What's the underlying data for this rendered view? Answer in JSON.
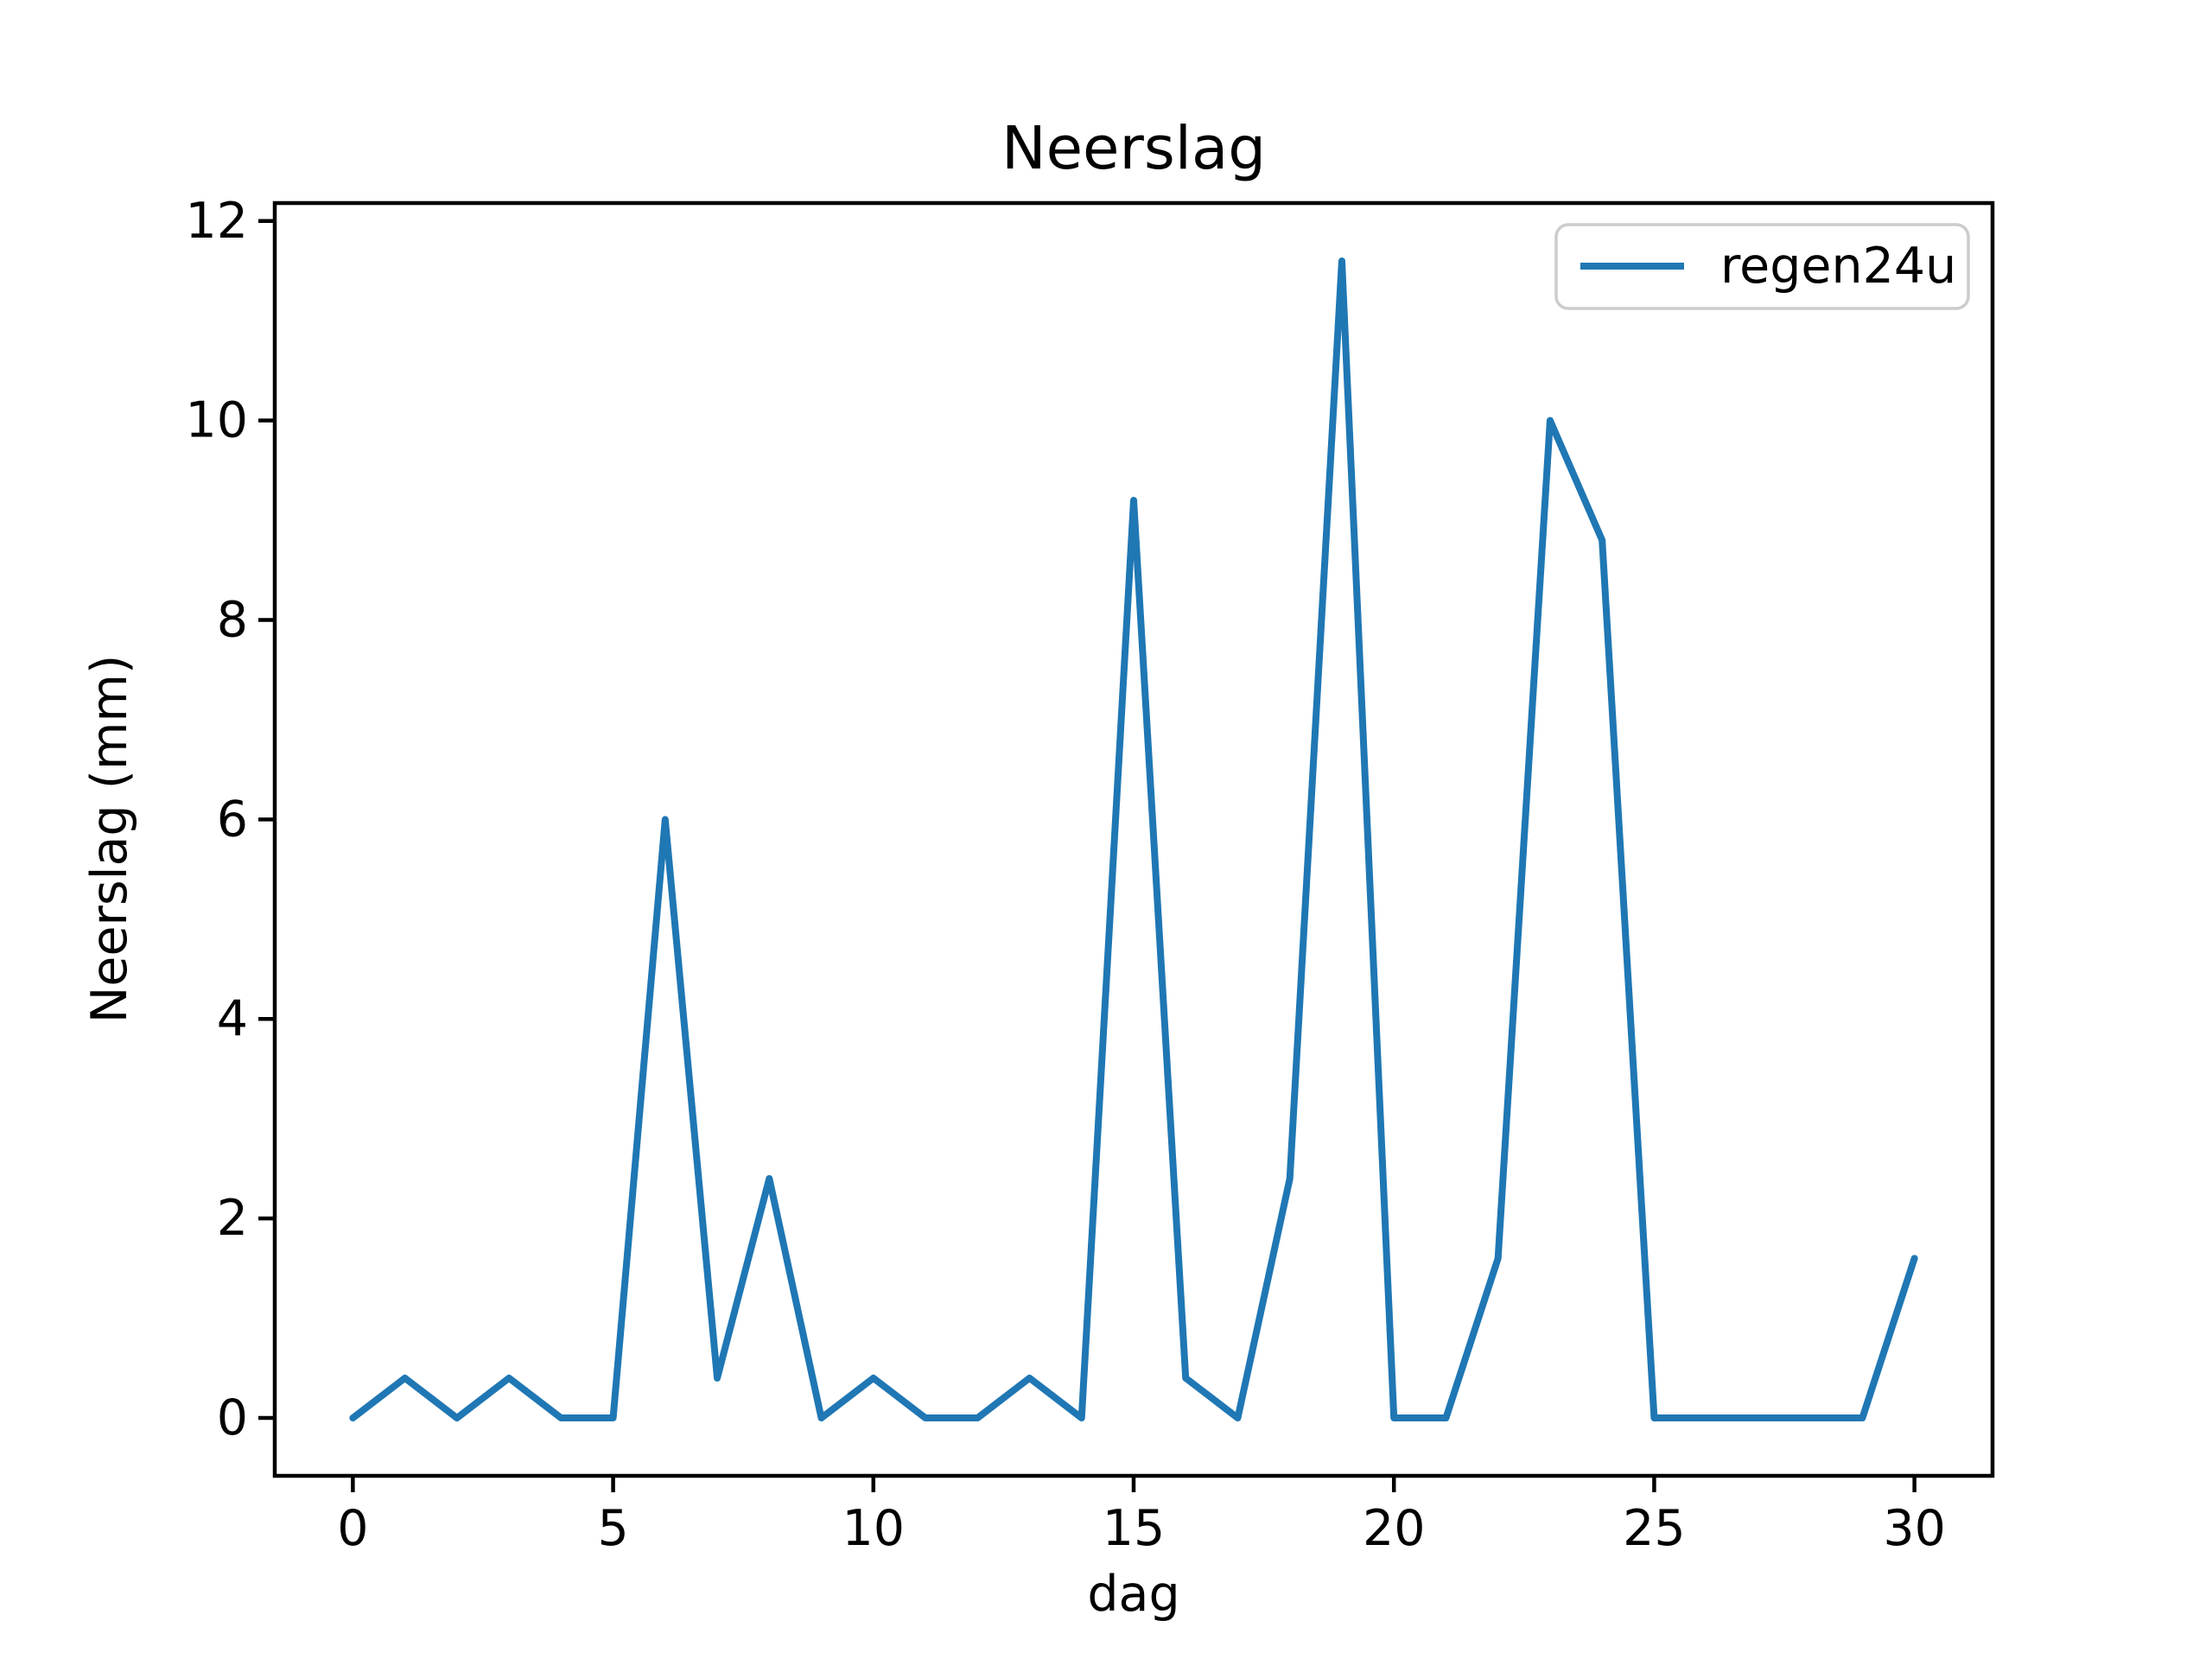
{
  "chart_data": {
    "type": "line",
    "title": "Neerslag",
    "xlabel": "dag",
    "ylabel": "Neerslag (mm)",
    "x": [
      0,
      1,
      2,
      3,
      4,
      5,
      6,
      7,
      8,
      9,
      10,
      11,
      12,
      13,
      14,
      15,
      16,
      17,
      18,
      19,
      20,
      21,
      22,
      23,
      24,
      25,
      26,
      27,
      28,
      29,
      30
    ],
    "series": [
      {
        "name": "regen24u",
        "color": "#1f77b4",
        "values": [
          0.0,
          0.4,
          0.0,
          0.4,
          0.0,
          0.0,
          6.0,
          0.4,
          2.4,
          0.0,
          0.4,
          0.0,
          0.0,
          0.4,
          0.0,
          9.2,
          0.4,
          0.0,
          2.4,
          11.6,
          0.0,
          0.0,
          1.6,
          10.0,
          8.8,
          0.0,
          0.0,
          0.0,
          0.0,
          0.0,
          1.6
        ]
      }
    ],
    "xlim": [
      -1.5,
      31.5
    ],
    "ylim": [
      -0.58,
      12.18
    ],
    "xticks": [
      0,
      5,
      10,
      15,
      20,
      25,
      30
    ],
    "yticks": [
      0,
      2,
      4,
      6,
      8,
      10,
      12
    ],
    "grid": false,
    "legend": {
      "label": "regen24u",
      "position": "upper right"
    }
  },
  "colors": {
    "line": "#1f77b4",
    "axis": "#000000",
    "legend_border": "#cccccc",
    "background": "#ffffff"
  }
}
